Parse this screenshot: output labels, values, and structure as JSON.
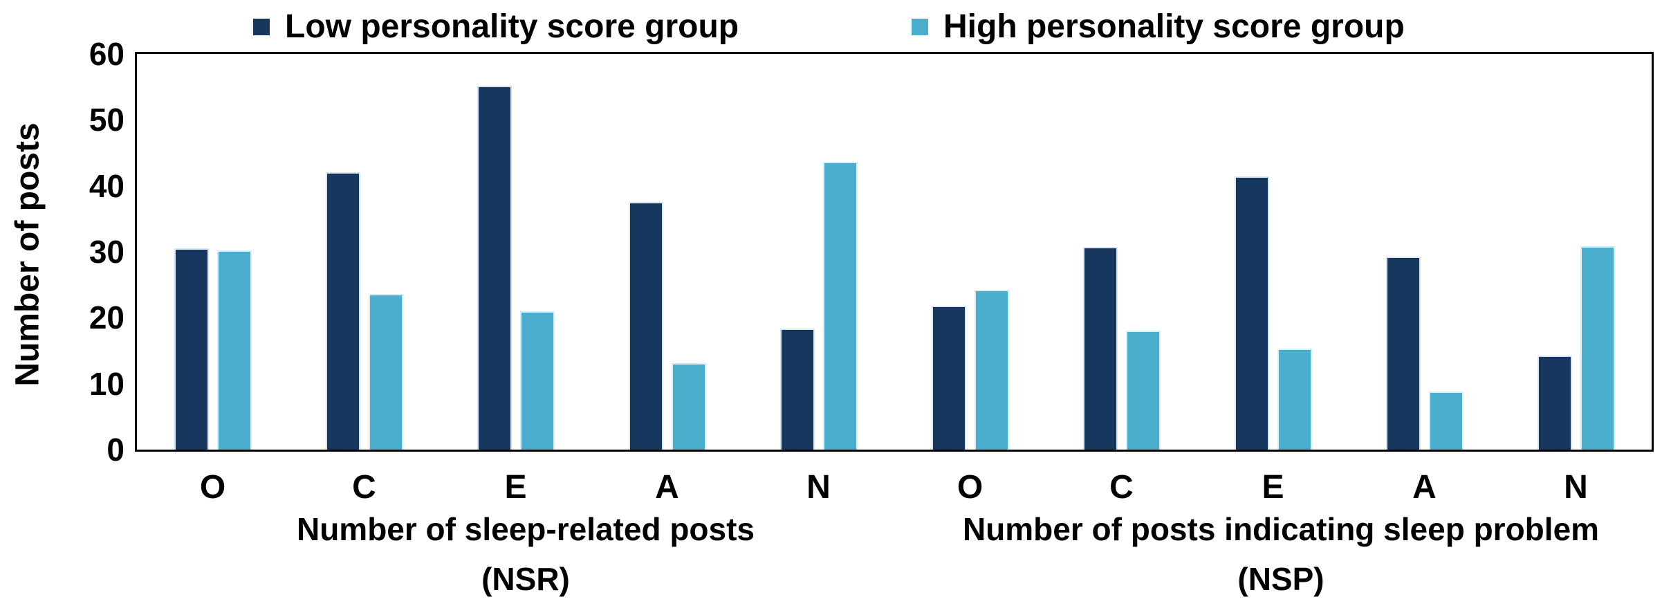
{
  "chart_data": {
    "type": "bar",
    "title": "",
    "ylabel": "Number of posts",
    "xlabel": "",
    "ylim": [
      0,
      60
    ],
    "yticks": [
      0,
      10,
      20,
      30,
      40,
      50,
      60
    ],
    "grid": false,
    "legend_position": "top",
    "categories": [
      "O",
      "C",
      "E",
      "A",
      "N"
    ],
    "legend": [
      {
        "label": "Low personality score group",
        "color": "#18375F"
      },
      {
        "label": "High personality score group",
        "color": "#4BAECC"
      }
    ],
    "groups": [
      {
        "axis_label_line1": "Number of sleep-related posts",
        "axis_label_line2": "(NSR)",
        "series": [
          {
            "name": "Low personality score group",
            "values": [
              30.5,
              42.1,
              55.2,
              37.6,
              18.4
            ]
          },
          {
            "name": "High personality score group",
            "values": [
              30.2,
              23.6,
              21.0,
              13.1,
              43.6
            ]
          }
        ]
      },
      {
        "axis_label_line1": "Number of posts indicating sleep problem",
        "axis_label_line2": "(NSP)",
        "series": [
          {
            "name": "Low personality score group",
            "values": [
              21.8,
              30.7,
              41.4,
              29.3,
              14.3
            ]
          },
          {
            "name": "High personality score group",
            "values": [
              24.2,
              18.0,
              15.3,
              8.8,
              30.8
            ]
          }
        ]
      }
    ]
  }
}
